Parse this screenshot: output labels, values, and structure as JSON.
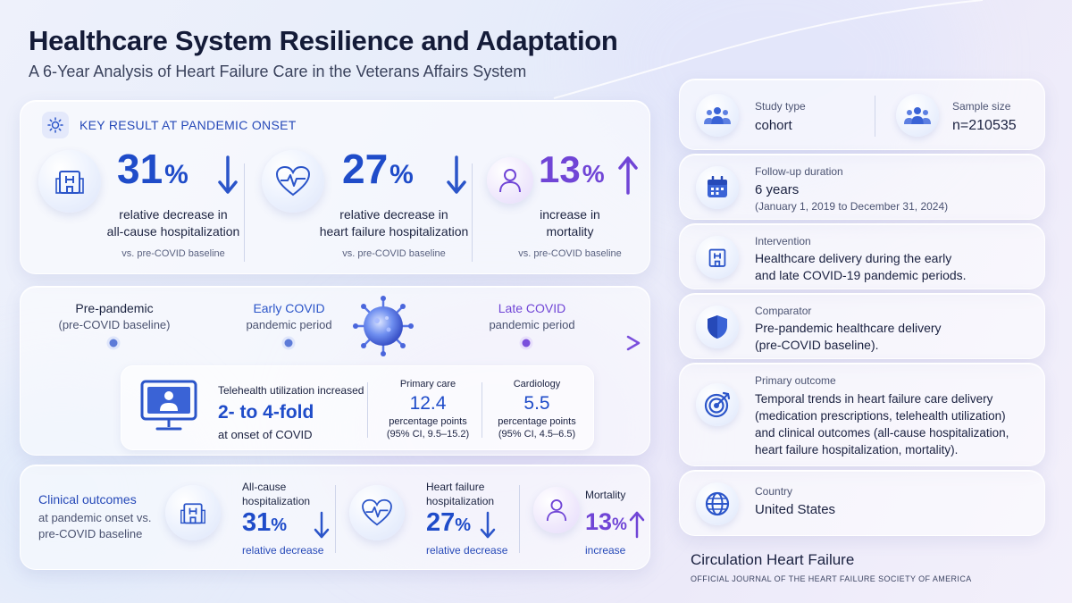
{
  "header": {
    "title": "Healthcare System Resilience and Adaptation",
    "subtitle": "A 6-Year Analysis of Heart Failure Care in the Veterans Affairs System"
  },
  "key_result": {
    "heading": "KEY RESULT AT PANDEMIC ONSET",
    "items": [
      {
        "icon": "hospital-icon",
        "value": "31",
        "unit": "%",
        "direction": "down",
        "desc_line1": "relative decrease in",
        "desc_line2": "all-cause hospitalization",
        "baseline": "vs. pre-COVID baseline"
      },
      {
        "icon": "heart-pulse-icon",
        "value": "27",
        "unit": "%",
        "direction": "down",
        "desc_line1": "relative decrease in",
        "desc_line2": "heart failure hospitalization",
        "baseline": "vs. pre-COVID baseline"
      },
      {
        "icon": "person-icon",
        "value": "13",
        "unit": "%",
        "direction": "up",
        "desc_line1": "increase in",
        "desc_line2": "mortality",
        "baseline": "vs. pre-COVID baseline"
      }
    ]
  },
  "timeline": {
    "phases": [
      {
        "title": "Pre-pandemic",
        "sub": "(pre-COVID baseline)"
      },
      {
        "title": "Early COVID",
        "sub": "pandemic period"
      },
      {
        "title": "Late COVID",
        "sub": "pandemic period"
      }
    ],
    "telehealth": {
      "label": "Telehealth utilization increased",
      "value": "2- to 4-fold",
      "note": "at onset of COVID",
      "stats": [
        {
          "title": "Primary care",
          "value": "12.4",
          "unit": "percentage points",
          "ci": "(95% CI, 9.5–15.2)"
        },
        {
          "title": "Cardiology",
          "value": "5.5",
          "unit": "percentage points",
          "ci": "(95% CI, 4.5–6.5)"
        }
      ]
    }
  },
  "clinical": {
    "title": "Clinical outcomes",
    "sub_line1": "at pandemic onset vs.",
    "sub_line2": "pre-COVID baseline",
    "items": [
      {
        "label_line1": "All-cause",
        "label_line2": "hospitalization",
        "value": "31",
        "unit": "%",
        "note": "relative decrease"
      },
      {
        "label_line1": "Heart failure",
        "label_line2": "hospitalization",
        "value": "27",
        "unit": "%",
        "note": "relative decrease"
      },
      {
        "label_line1": "Mortality",
        "label_line2": "",
        "value": "13",
        "unit": "%",
        "note": "increase"
      }
    ]
  },
  "details": {
    "study_type_label": "Study type",
    "study_type": "cohort",
    "sample_size_label": "Sample size",
    "sample_size": "n=210535",
    "followup_label": "Follow-up duration",
    "followup": "6 years",
    "followup_range": "(January 1, 2019 to December 31, 2024)",
    "intervention_label": "Intervention",
    "intervention_line1": "Healthcare delivery during the early",
    "intervention_line2": "and late COVID-19 pandemic periods.",
    "comparator_label": "Comparator",
    "comparator_line1": "Pre-pandemic healthcare delivery",
    "comparator_line2": "(pre-COVID baseline).",
    "outcome_label": "Primary outcome",
    "outcome_line1": "Temporal trends in heart failure care delivery",
    "outcome_line2": "(medication prescriptions, telehealth utilization)",
    "outcome_line3": "and clinical outcomes (all-cause hospitalization,",
    "outcome_line4": "heart failure hospitalization, mortality).",
    "country_label": "Country",
    "country": "United States"
  },
  "journal": {
    "name": "Circulation Heart Failure",
    "tagline": "OFFICIAL JOURNAL OF THE HEART FAILURE SOCIETY OF AMERICA"
  },
  "colors": {
    "blue": "#1f4cc9",
    "purple": "#7045d6",
    "ink": "#1a2140"
  }
}
